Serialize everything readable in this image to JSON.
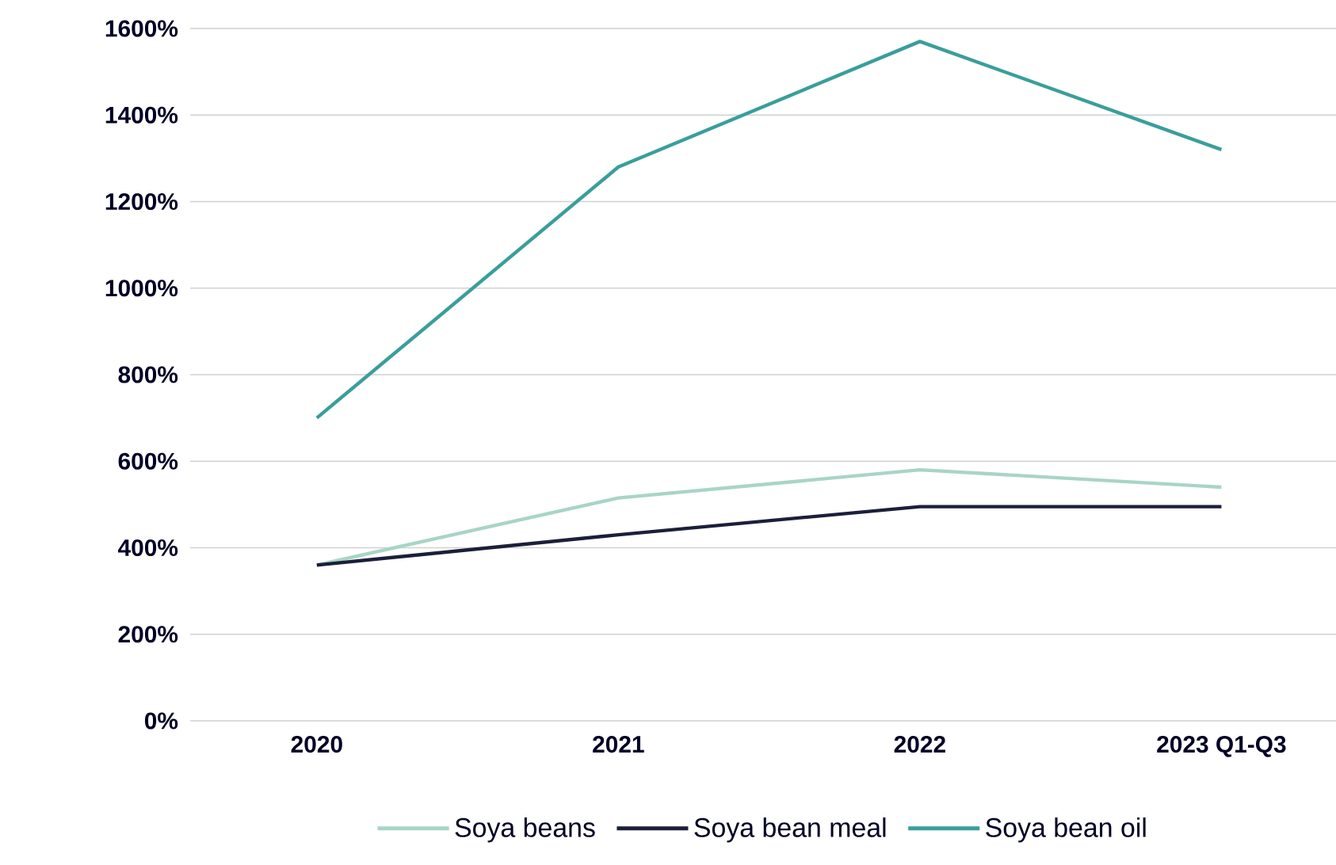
{
  "chart_data": {
    "type": "line",
    "categories": [
      "2020",
      "2021",
      "2022",
      "2023 Q1-Q3"
    ],
    "series": [
      {
        "name": "Soya beans",
        "color": "#a8d5c5",
        "values": [
          360,
          515,
          580,
          540
        ]
      },
      {
        "name": "Soya bean meal",
        "color": "#1b1f3b",
        "values": [
          360,
          430,
          495,
          495
        ]
      },
      {
        "name": "Soya bean oil",
        "color": "#3a9e9b",
        "values": [
          700,
          1280,
          1570,
          1320
        ]
      }
    ],
    "ylim": [
      0,
      1600
    ],
    "yticks": [
      {
        "value": 0,
        "label": "0%"
      },
      {
        "value": 200,
        "label": "200%"
      },
      {
        "value": 400,
        "label": "400%"
      },
      {
        "value": 600,
        "label": "600%"
      },
      {
        "value": 800,
        "label": "800%"
      },
      {
        "value": 1000,
        "label": "1000%"
      },
      {
        "value": 1200,
        "label": "1200%"
      },
      {
        "value": 1400,
        "label": "1400%"
      },
      {
        "value": 1600,
        "label": "1600%"
      }
    ],
    "grid": "y",
    "legend": "bottom",
    "marker": "none",
    "line_style": "solid"
  }
}
